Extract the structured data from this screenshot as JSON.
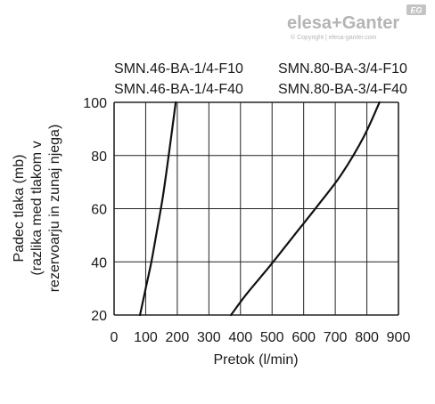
{
  "branding": {
    "logo_text": "elesa+Ganter",
    "copyright_text": "© Copyright | elesa-ganter.com",
    "badge_text": "EG"
  },
  "colors": {
    "brand_gray": "#b5b5b5",
    "line": "#111111",
    "grid": "#222222"
  },
  "chart_data": {
    "type": "line",
    "title": "",
    "xlabel": "Pretok (l/min)",
    "ylabel_lines": [
      "Padec tlaka (mb)",
      "(razlika med tlakom v",
      "rezervoarju in zunaj njega)"
    ],
    "xlim": [
      0,
      900
    ],
    "ylim": [
      20,
      100
    ],
    "x_ticks": [
      0,
      100,
      200,
      300,
      400,
      500,
      600,
      700,
      800,
      900
    ],
    "y_ticks": [
      20,
      40,
      60,
      80,
      100
    ],
    "grid": true,
    "series": [
      {
        "name": "SMN.46-BA-1/4-F10",
        "name_line2": "SMN.46-BA-1/4-F40",
        "x": [
          82,
          100,
          118,
          136,
          155,
          175,
          195
        ],
        "y": [
          20,
          30,
          40,
          52,
          65,
          82,
          100
        ]
      },
      {
        "name": "SMN.80-BA-3/4-F10",
        "name_line2": "SMN.80-BA-3/4-F40",
        "x": [
          370,
          420,
          490,
          570,
          650,
          720,
          790,
          840
        ],
        "y": [
          20,
          28,
          38,
          50,
          62,
          73,
          87,
          100
        ]
      }
    ]
  }
}
